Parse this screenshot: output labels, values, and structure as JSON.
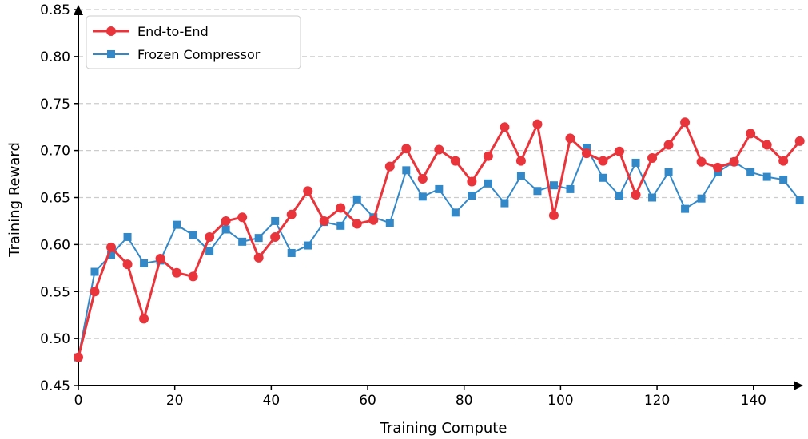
{
  "chart_data": {
    "type": "line",
    "title": "",
    "xlabel": "Training Compute",
    "ylabel": "Training Reward",
    "xlim": [
      0,
      150
    ],
    "ylim": [
      0.45,
      0.85
    ],
    "xticks": [
      "0",
      "20",
      "40",
      "60",
      "80",
      "100",
      "120",
      "140"
    ],
    "xtick_values": [
      0,
      20,
      40,
      60,
      80,
      100,
      120,
      140
    ],
    "yticks": [
      "0.45",
      "0.50",
      "0.55",
      "0.60",
      "0.65",
      "0.70",
      "0.75",
      "0.80",
      "0.85"
    ],
    "ytick_values": [
      0.45,
      0.5,
      0.55,
      0.6,
      0.65,
      0.7,
      0.75,
      0.8,
      0.85
    ],
    "grid": "horizontal dashed",
    "legend_position": "top-left",
    "x": [
      0,
      3.4,
      6.8,
      10.2,
      13.6,
      17.0,
      20.4,
      23.8,
      27.2,
      30.6,
      34.0,
      37.4,
      40.8,
      44.2,
      47.6,
      51.0,
      54.4,
      57.8,
      61.2,
      64.6,
      68.0,
      71.4,
      74.8,
      78.2,
      81.6,
      85.0,
      88.4,
      91.8,
      95.2,
      98.6,
      102.0,
      105.4,
      108.8,
      112.2,
      115.6,
      119.0,
      122.4,
      125.8,
      129.2,
      132.6,
      136.0,
      139.4,
      142.8,
      146.2,
      149.6
    ],
    "series": [
      {
        "name": "End-to-End",
        "color": "#e8343a",
        "marker": "circle",
        "values": [
          0.48,
          0.55,
          0.597,
          0.579,
          0.521,
          0.585,
          0.57,
          0.566,
          0.608,
          0.625,
          0.629,
          0.586,
          0.608,
          0.632,
          0.657,
          0.625,
          0.639,
          0.622,
          0.626,
          0.683,
          0.702,
          0.67,
          0.701,
          0.689,
          0.667,
          0.694,
          0.725,
          0.689,
          0.728,
          0.631,
          0.713,
          0.697,
          0.689,
          0.699,
          0.653,
          0.692,
          0.706,
          0.73,
          0.688,
          0.682,
          0.688,
          0.718,
          0.706,
          0.689,
          0.71
        ]
      },
      {
        "name": "Frozen Compressor",
        "color": "#3388c8",
        "marker": "square",
        "values": [
          0.48,
          0.571,
          0.589,
          0.608,
          0.58,
          0.583,
          0.621,
          0.61,
          0.593,
          0.616,
          0.603,
          0.607,
          0.625,
          0.591,
          0.599,
          0.624,
          0.62,
          0.648,
          0.629,
          0.623,
          0.679,
          0.651,
          0.659,
          0.634,
          0.652,
          0.665,
          0.644,
          0.673,
          0.657,
          0.663,
          0.659,
          0.703,
          0.671,
          0.652,
          0.687,
          0.65,
          0.677,
          0.638,
          0.649,
          0.677,
          0.688,
          0.677,
          0.672,
          0.669,
          0.647
        ]
      }
    ]
  }
}
